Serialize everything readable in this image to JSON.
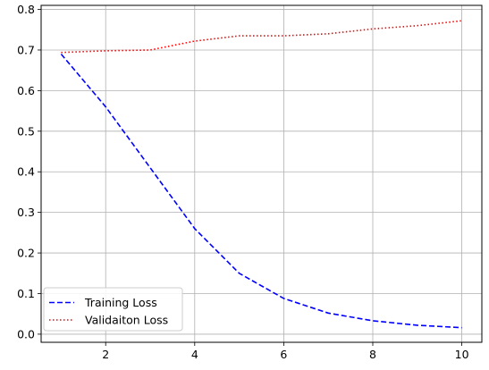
{
  "chart_data": {
    "type": "line",
    "title": "",
    "xlabel": "",
    "ylabel": "",
    "xlim": [
      0.55,
      10.45
    ],
    "ylim": [
      -0.02,
      0.81
    ],
    "xticks": [
      2,
      4,
      6,
      8,
      10
    ],
    "yticks": [
      0.0,
      0.1,
      0.2,
      0.3,
      0.4,
      0.5,
      0.6,
      0.7,
      0.8
    ],
    "xtick_labels": [
      "2",
      "4",
      "6",
      "8",
      "10"
    ],
    "ytick_labels": [
      "0.0",
      "0.1",
      "0.2",
      "0.3",
      "0.4",
      "0.5",
      "0.6",
      "0.7",
      "0.8"
    ],
    "grid": true,
    "legend_position": "lower-left",
    "x": [
      1,
      2,
      3,
      4,
      5,
      6,
      7,
      8,
      9,
      10
    ],
    "series": [
      {
        "name": "Training Loss",
        "color": "#0000ff",
        "style": "dashed",
        "values": [
          0.69,
          0.56,
          0.41,
          0.26,
          0.15,
          0.088,
          0.052,
          0.033,
          0.022,
          0.016
        ]
      },
      {
        "name": "Validaiton Loss",
        "color": "#ff0000",
        "style": "dotted",
        "values": [
          0.694,
          0.698,
          0.7,
          0.722,
          0.735,
          0.735,
          0.74,
          0.752,
          0.76,
          0.772
        ]
      }
    ]
  }
}
